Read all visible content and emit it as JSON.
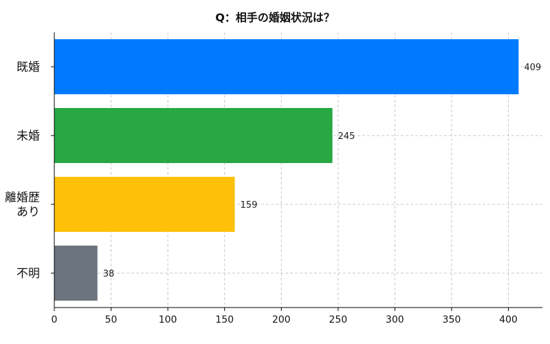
{
  "chart_data": {
    "type": "bar",
    "orientation": "horizontal",
    "title": "Q：相手の婚姻状況は？",
    "categories": [
      "既婚",
      "未婚",
      "離婚歴\nあり",
      "不明"
    ],
    "values": [
      409,
      245,
      159,
      38
    ],
    "colors": [
      "#007bff",
      "#28a745",
      "#ffc107",
      "#6c757d"
    ],
    "xlabel": "",
    "ylabel": "",
    "xlim": [
      0,
      430
    ],
    "xticks": [
      0,
      50,
      100,
      150,
      200,
      250,
      300,
      350,
      400
    ],
    "grid": true,
    "legend": "none"
  }
}
